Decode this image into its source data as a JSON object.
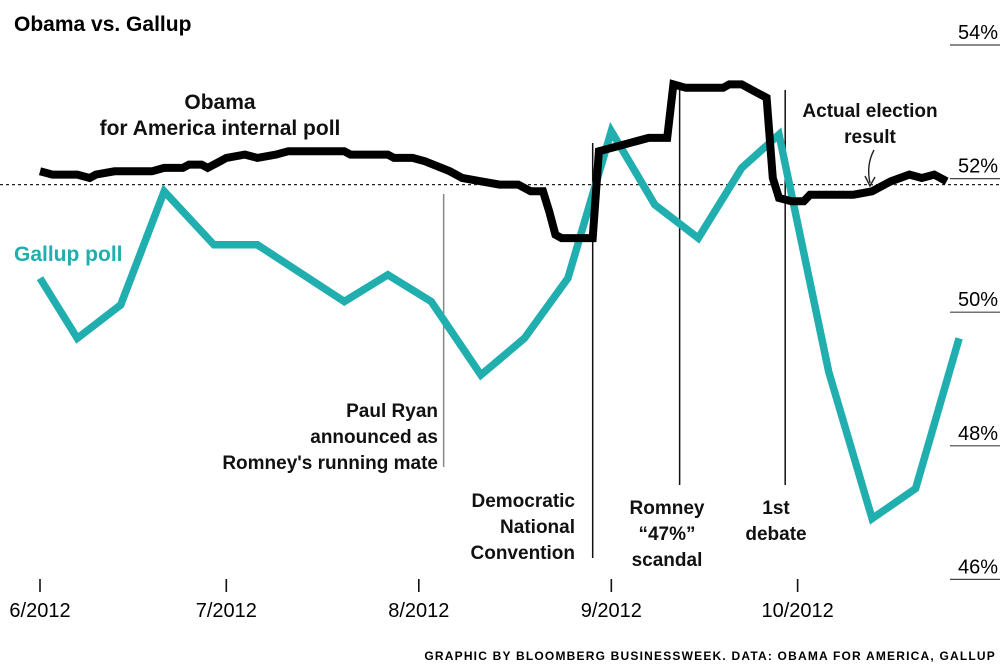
{
  "chart_data": {
    "type": "line",
    "title": "Obama vs. Gallup",
    "xlabel": "",
    "ylabel": "",
    "ylim": [
      46,
      54
    ],
    "y_ticks": [
      "54%",
      "52%",
      "50%",
      "48%",
      "46%"
    ],
    "y_tick_values": [
      54,
      52,
      50,
      48,
      46
    ],
    "x_ticks": [
      "6/2012",
      "7/2012",
      "8/2012",
      "9/2012",
      "10/2012"
    ],
    "x_tick_values": [
      "2012-06-01",
      "2012-07-01",
      "2012-08-01",
      "2012-09-01",
      "2012-10-01"
    ],
    "reference_line": {
      "value": 51.7,
      "style": "dashed"
    },
    "series": [
      {
        "name": "Obama for America internal poll",
        "color": "#000000",
        "points": [
          [
            "2012-06-01",
            51.9
          ],
          [
            "2012-06-03",
            51.85
          ],
          [
            "2012-06-07",
            51.85
          ],
          [
            "2012-06-09",
            51.8
          ],
          [
            "2012-06-10",
            51.85
          ],
          [
            "2012-06-13",
            51.9
          ],
          [
            "2012-06-19",
            51.9
          ],
          [
            "2012-06-21",
            51.95
          ],
          [
            "2012-06-24",
            51.95
          ],
          [
            "2012-06-25",
            52.0
          ],
          [
            "2012-06-27",
            52.0
          ],
          [
            "2012-06-28",
            51.95
          ],
          [
            "2012-06-30",
            52.05
          ],
          [
            "2012-07-01",
            52.1
          ],
          [
            "2012-07-04",
            52.15
          ],
          [
            "2012-07-06",
            52.1
          ],
          [
            "2012-07-09",
            52.15
          ],
          [
            "2012-07-11",
            52.2
          ],
          [
            "2012-07-20",
            52.2
          ],
          [
            "2012-07-21",
            52.15
          ],
          [
            "2012-07-27",
            52.15
          ],
          [
            "2012-07-28",
            52.1
          ],
          [
            "2012-07-31",
            52.1
          ],
          [
            "2012-08-02",
            52.05
          ],
          [
            "2012-08-06",
            51.9
          ],
          [
            "2012-08-08",
            51.8
          ],
          [
            "2012-08-11",
            51.75
          ],
          [
            "2012-08-14",
            51.7
          ],
          [
            "2012-08-17",
            51.7
          ],
          [
            "2012-08-19",
            51.6
          ],
          [
            "2012-08-21",
            51.6
          ],
          [
            "2012-08-22",
            51.3
          ],
          [
            "2012-08-23",
            50.95
          ],
          [
            "2012-08-24",
            50.9
          ],
          [
            "2012-08-29",
            50.9
          ],
          [
            "2012-08-30",
            52.2
          ],
          [
            "2012-09-03",
            52.3
          ],
          [
            "2012-09-07",
            52.4
          ],
          [
            "2012-09-10",
            52.4
          ],
          [
            "2012-09-11",
            53.2
          ],
          [
            "2012-09-13",
            53.15
          ],
          [
            "2012-09-19",
            53.15
          ],
          [
            "2012-09-20",
            53.2
          ],
          [
            "2012-09-22",
            53.2
          ],
          [
            "2012-09-24",
            53.1
          ],
          [
            "2012-09-26",
            53.0
          ],
          [
            "2012-09-27",
            51.8
          ],
          [
            "2012-09-28",
            51.5
          ],
          [
            "2012-09-30",
            51.45
          ],
          [
            "2012-10-02",
            51.45
          ],
          [
            "2012-10-03",
            51.55
          ],
          [
            "2012-10-10",
            51.55
          ],
          [
            "2012-10-13",
            51.6
          ],
          [
            "2012-10-16",
            51.75
          ],
          [
            "2012-10-19",
            51.85
          ],
          [
            "2012-10-21",
            51.8
          ],
          [
            "2012-10-23",
            51.85
          ],
          [
            "2012-10-25",
            51.75
          ]
        ]
      },
      {
        "name": "Gallup poll",
        "color": "#21aeae",
        "points": [
          [
            "2012-06-01",
            50.3
          ],
          [
            "2012-06-07",
            49.4
          ],
          [
            "2012-06-14",
            49.9
          ],
          [
            "2012-06-21",
            51.6
          ],
          [
            "2012-06-29",
            50.8
          ],
          [
            "2012-07-06",
            50.8
          ],
          [
            "2012-07-20",
            49.95
          ],
          [
            "2012-07-27",
            50.35
          ],
          [
            "2012-08-03",
            49.95
          ],
          [
            "2012-08-11",
            48.85
          ],
          [
            "2012-08-18",
            49.4
          ],
          [
            "2012-08-25",
            50.3
          ],
          [
            "2012-09-01",
            52.5
          ],
          [
            "2012-09-08",
            51.4
          ],
          [
            "2012-09-15",
            50.9
          ],
          [
            "2012-09-22",
            51.95
          ],
          [
            "2012-09-28",
            52.45
          ],
          [
            "2012-10-06",
            48.9
          ],
          [
            "2012-10-13",
            46.7
          ],
          [
            "2012-10-20",
            47.15
          ],
          [
            "2012-10-27",
            49.4
          ]
        ]
      }
    ],
    "annotations": [
      {
        "lines": [
          "Obama",
          "for America internal poll"
        ]
      },
      {
        "lines": [
          "Gallup poll"
        ]
      },
      {
        "date": "2012-08-05",
        "lines": [
          "Paul Ryan",
          "announced as",
          "Romney's running mate"
        ]
      },
      {
        "date": "2012-08-29",
        "lines": [
          "Democratic",
          "National",
          "Convention"
        ]
      },
      {
        "date": "2012-09-12",
        "lines": [
          "Romney",
          "“47%”",
          "scandal"
        ]
      },
      {
        "date": "2012-09-29",
        "lines": [
          "1st",
          "debate"
        ]
      },
      {
        "date": "2012-10-16",
        "lines": [
          "Actual election",
          "result"
        ]
      }
    ],
    "source": "GRAPHIC BY BLOOMBERG BUSINESSWEEK. DATA: OBAMA FOR AMERICA, GALLUP",
    "grid": false,
    "legend": "none (direct labels)"
  }
}
